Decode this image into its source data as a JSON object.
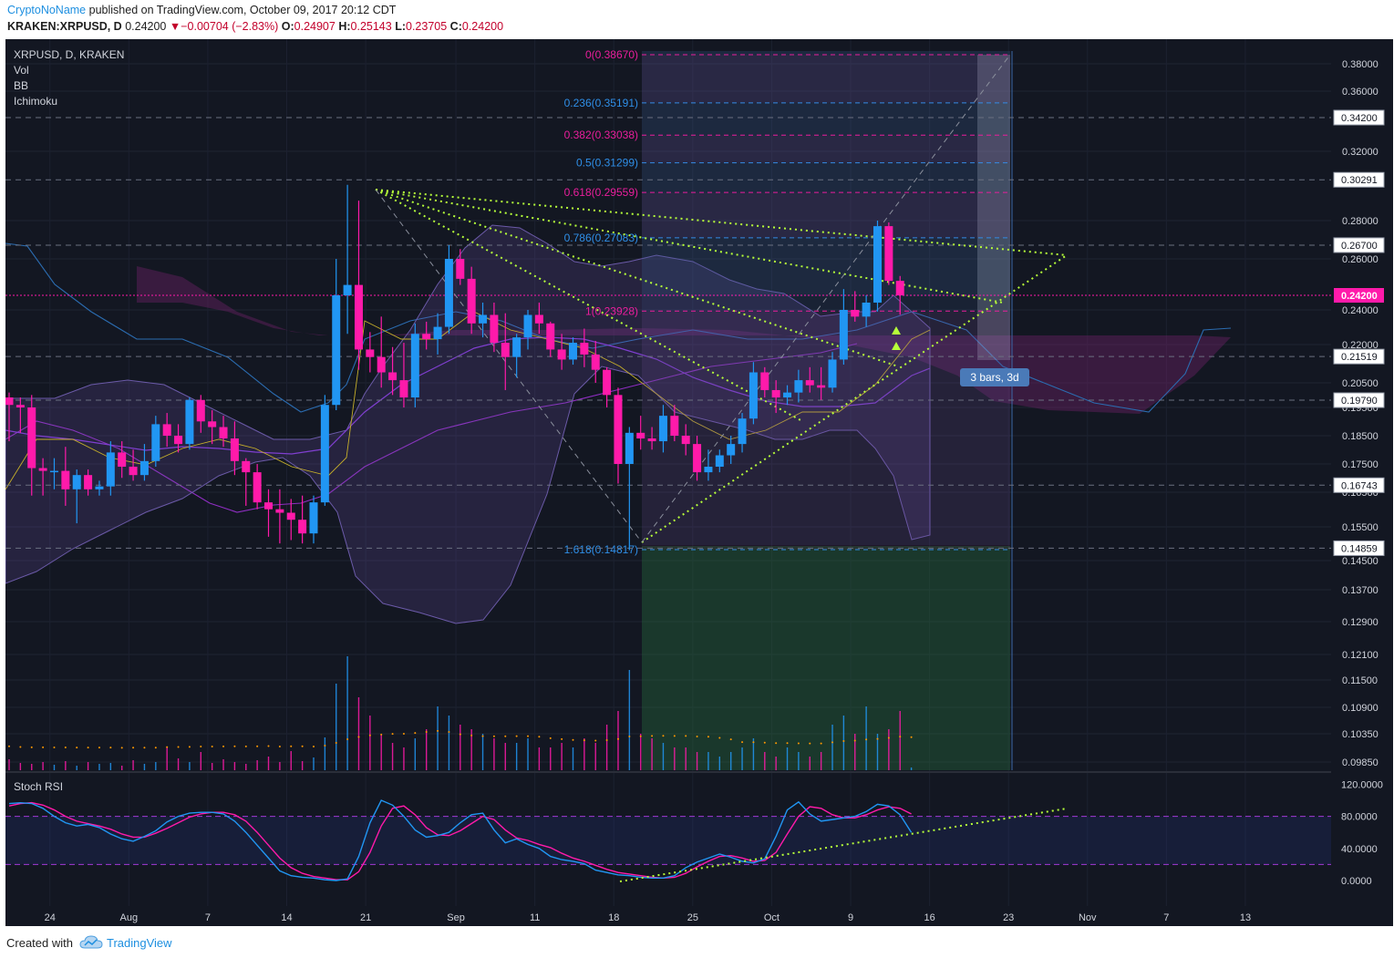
{
  "header": {
    "author": "CryptoNoName",
    "published_text": "published on TradingView.com, October 09, 2017 20:12 CDT",
    "symbol_line": "KRAKEN:XRPUSD, D",
    "last": "0.24200",
    "change": "−0.00704 (−2.83%)",
    "o_label": "O:",
    "o": "0.24907",
    "h_label": "H:",
    "h": "0.25143",
    "l_label": "L:",
    "l": "0.23705",
    "c_label": "C:",
    "c": "0.24200"
  },
  "legend": {
    "symbol": "XRPUSD, D, KRAKEN",
    "indicators": [
      "Vol",
      "BB",
      "Ichimoku"
    ]
  },
  "footer": {
    "created_with": "Created with",
    "brand": "TradingView"
  },
  "colors": {
    "background": "#131722",
    "up": "#2196f3",
    "down": "#ff1aaa",
    "fib_pink": "#e91e9c",
    "fib_blue": "#2f8fe8",
    "trendline": "#b6ff3a",
    "stoch_k": "#2196f3",
    "stoch_d": "#ff1aaa",
    "volume_ma": "#ff9800"
  },
  "chart_data": {
    "type": "candlestick",
    "instrument": "XRPUSD",
    "timeframe": "D",
    "exchange": "KRAKEN",
    "price_axis": {
      "ticks": [
        "0.38000",
        "0.36000",
        "0.32000",
        "0.28000",
        "0.26000",
        "0.24000",
        "0.22000",
        "0.20500",
        "0.19500",
        "0.18500",
        "0.17500",
        "0.16500",
        "0.15500",
        "0.14500",
        "0.13700",
        "0.12900",
        "0.12100",
        "0.11500",
        "0.10900",
        "0.10350",
        "0.09850"
      ],
      "labels": [
        "0.34200",
        "0.30291",
        "0.26700",
        "0.24200",
        "0.21519",
        "0.19790",
        "0.16743",
        "0.14859"
      ],
      "current": "0.24200"
    },
    "time_axis": [
      "24",
      "Aug",
      "7",
      "14",
      "21",
      "Sep",
      "11",
      "18",
      "25",
      "Oct",
      "9",
      "16",
      "23",
      "Nov",
      "7",
      "13"
    ],
    "candles": [
      {
        "o": 0.199,
        "h": 0.201,
        "l": 0.183,
        "c": 0.196
      },
      {
        "o": 0.196,
        "h": 0.199,
        "l": 0.186,
        "c": 0.195
      },
      {
        "o": 0.195,
        "h": 0.2,
        "l": 0.164,
        "c": 0.1735
      },
      {
        "o": 0.1735,
        "h": 0.177,
        "l": 0.164,
        "c": 0.1725
      },
      {
        "o": 0.1725,
        "h": 0.177,
        "l": 0.166,
        "c": 0.1725
      },
      {
        "o": 0.1725,
        "h": 0.181,
        "l": 0.161,
        "c": 0.166
      },
      {
        "o": 0.166,
        "h": 0.173,
        "l": 0.156,
        "c": 0.171
      },
      {
        "o": 0.171,
        "h": 0.173,
        "l": 0.164,
        "c": 0.166
      },
      {
        "o": 0.166,
        "h": 0.169,
        "l": 0.164,
        "c": 0.167
      },
      {
        "o": 0.167,
        "h": 0.183,
        "l": 0.164,
        "c": 0.179
      },
      {
        "o": 0.179,
        "h": 0.183,
        "l": 0.17,
        "c": 0.174
      },
      {
        "o": 0.174,
        "h": 0.18,
        "l": 0.169,
        "c": 0.171
      },
      {
        "o": 0.171,
        "h": 0.182,
        "l": 0.169,
        "c": 0.176
      },
      {
        "o": 0.176,
        "h": 0.192,
        "l": 0.174,
        "c": 0.189
      },
      {
        "o": 0.189,
        "h": 0.193,
        "l": 0.181,
        "c": 0.185
      },
      {
        "o": 0.185,
        "h": 0.189,
        "l": 0.179,
        "c": 0.182
      },
      {
        "o": 0.182,
        "h": 0.199,
        "l": 0.18,
        "c": 0.198
      },
      {
        "o": 0.198,
        "h": 0.2,
        "l": 0.186,
        "c": 0.19
      },
      {
        "o": 0.19,
        "h": 0.194,
        "l": 0.182,
        "c": 0.188
      },
      {
        "o": 0.188,
        "h": 0.192,
        "l": 0.181,
        "c": 0.184
      },
      {
        "o": 0.184,
        "h": 0.19,
        "l": 0.171,
        "c": 0.176
      },
      {
        "o": 0.176,
        "h": 0.177,
        "l": 0.161,
        "c": 0.172
      },
      {
        "o": 0.172,
        "h": 0.175,
        "l": 0.16,
        "c": 0.162
      },
      {
        "o": 0.162,
        "h": 0.166,
        "l": 0.152,
        "c": 0.16
      },
      {
        "o": 0.16,
        "h": 0.166,
        "l": 0.15,
        "c": 0.159
      },
      {
        "o": 0.159,
        "h": 0.163,
        "l": 0.151,
        "c": 0.157
      },
      {
        "o": 0.157,
        "h": 0.164,
        "l": 0.15,
        "c": 0.153
      },
      {
        "o": 0.153,
        "h": 0.164,
        "l": 0.15,
        "c": 0.162
      },
      {
        "o": 0.162,
        "h": 0.2,
        "l": 0.161,
        "c": 0.196
      },
      {
        "o": 0.196,
        "h": 0.26,
        "l": 0.194,
        "c": 0.242
      },
      {
        "o": 0.242,
        "h": 0.3,
        "l": 0.226,
        "c": 0.247
      },
      {
        "o": 0.247,
        "h": 0.291,
        "l": 0.21,
        "c": 0.218
      },
      {
        "o": 0.218,
        "h": 0.227,
        "l": 0.209,
        "c": 0.215
      },
      {
        "o": 0.215,
        "h": 0.236,
        "l": 0.203,
        "c": 0.209
      },
      {
        "o": 0.209,
        "h": 0.219,
        "l": 0.2,
        "c": 0.206
      },
      {
        "o": 0.206,
        "h": 0.221,
        "l": 0.195,
        "c": 0.199
      },
      {
        "o": 0.199,
        "h": 0.232,
        "l": 0.195,
        "c": 0.226
      },
      {
        "o": 0.226,
        "h": 0.233,
        "l": 0.218,
        "c": 0.223
      },
      {
        "o": 0.223,
        "h": 0.238,
        "l": 0.216,
        "c": 0.23
      },
      {
        "o": 0.23,
        "h": 0.267,
        "l": 0.226,
        "c": 0.26
      },
      {
        "o": 0.26,
        "h": 0.265,
        "l": 0.247,
        "c": 0.25
      },
      {
        "o": 0.25,
        "h": 0.256,
        "l": 0.226,
        "c": 0.232
      },
      {
        "o": 0.232,
        "h": 0.241,
        "l": 0.224,
        "c": 0.237
      },
      {
        "o": 0.237,
        "h": 0.241,
        "l": 0.217,
        "c": 0.221
      },
      {
        "o": 0.221,
        "h": 0.238,
        "l": 0.202,
        "c": 0.215
      },
      {
        "o": 0.215,
        "h": 0.226,
        "l": 0.207,
        "c": 0.224
      },
      {
        "o": 0.224,
        "h": 0.24,
        "l": 0.218,
        "c": 0.237
      },
      {
        "o": 0.237,
        "h": 0.241,
        "l": 0.226,
        "c": 0.232
      },
      {
        "o": 0.232,
        "h": 0.233,
        "l": 0.215,
        "c": 0.218
      },
      {
        "o": 0.218,
        "h": 0.226,
        "l": 0.21,
        "c": 0.214
      },
      {
        "o": 0.214,
        "h": 0.224,
        "l": 0.212,
        "c": 0.221
      },
      {
        "o": 0.221,
        "h": 0.229,
        "l": 0.211,
        "c": 0.216
      },
      {
        "o": 0.216,
        "h": 0.222,
        "l": 0.205,
        "c": 0.21
      },
      {
        "o": 0.21,
        "h": 0.211,
        "l": 0.195,
        "c": 0.2
      },
      {
        "o": 0.2,
        "h": 0.203,
        "l": 0.168,
        "c": 0.175
      },
      {
        "o": 0.175,
        "h": 0.188,
        "l": 0.148,
        "c": 0.186
      },
      {
        "o": 0.186,
        "h": 0.192,
        "l": 0.18,
        "c": 0.184
      },
      {
        "o": 0.184,
        "h": 0.188,
        "l": 0.18,
        "c": 0.183
      },
      {
        "o": 0.183,
        "h": 0.196,
        "l": 0.179,
        "c": 0.192
      },
      {
        "o": 0.192,
        "h": 0.196,
        "l": 0.183,
        "c": 0.185
      },
      {
        "o": 0.185,
        "h": 0.189,
        "l": 0.178,
        "c": 0.182
      },
      {
        "o": 0.182,
        "h": 0.185,
        "l": 0.169,
        "c": 0.172
      },
      {
        "o": 0.172,
        "h": 0.18,
        "l": 0.169,
        "c": 0.174
      },
      {
        "o": 0.174,
        "h": 0.18,
        "l": 0.172,
        "c": 0.178
      },
      {
        "o": 0.178,
        "h": 0.185,
        "l": 0.175,
        "c": 0.182
      },
      {
        "o": 0.182,
        "h": 0.193,
        "l": 0.179,
        "c": 0.191
      },
      {
        "o": 0.191,
        "h": 0.213,
        "l": 0.189,
        "c": 0.209
      },
      {
        "o": 0.209,
        "h": 0.211,
        "l": 0.199,
        "c": 0.202
      },
      {
        "o": 0.202,
        "h": 0.206,
        "l": 0.193,
        "c": 0.199
      },
      {
        "o": 0.199,
        "h": 0.204,
        "l": 0.196,
        "c": 0.201
      },
      {
        "o": 0.201,
        "h": 0.21,
        "l": 0.197,
        "c": 0.206
      },
      {
        "o": 0.206,
        "h": 0.211,
        "l": 0.201,
        "c": 0.204
      },
      {
        "o": 0.204,
        "h": 0.211,
        "l": 0.198,
        "c": 0.203
      },
      {
        "o": 0.203,
        "h": 0.217,
        "l": 0.201,
        "c": 0.214
      },
      {
        "o": 0.214,
        "h": 0.245,
        "l": 0.212,
        "c": 0.24
      },
      {
        "o": 0.24,
        "h": 0.244,
        "l": 0.233,
        "c": 0.236
      },
      {
        "o": 0.236,
        "h": 0.242,
        "l": 0.23,
        "c": 0.241
      },
      {
        "o": 0.241,
        "h": 0.28,
        "l": 0.239,
        "c": 0.277
      },
      {
        "o": 0.277,
        "h": 0.279,
        "l": 0.247,
        "c": 0.249
      },
      {
        "o": 0.249,
        "h": 0.2514,
        "l": 0.2371,
        "c": 0.242
      }
    ],
    "fibonacci": [
      {
        "level": "0",
        "price": "0.38670",
        "label": "0(0.38670)",
        "color": "pink"
      },
      {
        "level": "0.236",
        "price": "0.35191",
        "label": "0.236(0.35191)",
        "color": "blue"
      },
      {
        "level": "0.382",
        "price": "0.33038",
        "label": "0.382(0.33038)",
        "color": "pink"
      },
      {
        "level": "0.5",
        "price": "0.31299",
        "label": "0.5(0.31299)",
        "color": "blue"
      },
      {
        "level": "0.618",
        "price": "0.29559",
        "label": "0.618(0.29559)",
        "color": "pink"
      },
      {
        "level": "0.786",
        "price": "0.27083",
        "label": "0.786(0.27083)",
        "color": "blue"
      },
      {
        "level": "1",
        "price": "0.23928",
        "label": "1(0.23928)",
        "color": "pink"
      },
      {
        "level": "1.618",
        "price": "0.14817",
        "label": "1.618(0.14817)",
        "color": "blue"
      }
    ],
    "projection_label": "3 bars, 3d",
    "stoch_rsi": {
      "title": "Stoch RSI",
      "axis": [
        "120.0000",
        "80.0000",
        "40.0000",
        "0.0000"
      ],
      "bands": [
        80,
        20
      ],
      "k": [
        96,
        97,
        96,
        90,
        80,
        72,
        68,
        70,
        66,
        58,
        52,
        49,
        55,
        62,
        73,
        80,
        84,
        85,
        85,
        83,
        74,
        60,
        44,
        28,
        12,
        6,
        4,
        3,
        1,
        0,
        2,
        30,
        72,
        100,
        94,
        80,
        63,
        54,
        56,
        60,
        72,
        82,
        84,
        63,
        47,
        52,
        45,
        40,
        30,
        26,
        24,
        21,
        13,
        10,
        7,
        6,
        4,
        3,
        3,
        6,
        16,
        23,
        28,
        33,
        29,
        24,
        22,
        27,
        55,
        88,
        98,
        83,
        74,
        76,
        78,
        80,
        86,
        95,
        93,
        82,
        60
      ],
      "d": [
        93,
        96,
        97,
        94,
        88,
        80,
        74,
        71,
        68,
        64,
        58,
        54,
        54,
        59,
        65,
        72,
        79,
        83,
        85,
        85,
        82,
        74,
        60,
        44,
        28,
        16,
        9,
        5,
        3,
        1,
        1,
        11,
        35,
        68,
        90,
        93,
        82,
        66,
        57,
        56,
        62,
        71,
        80,
        76,
        63,
        53,
        50,
        45,
        41,
        34,
        28,
        24,
        19,
        14,
        10,
        8,
        6,
        4,
        3,
        4,
        9,
        17,
        24,
        30,
        31,
        28,
        24,
        25,
        35,
        58,
        80,
        92,
        90,
        82,
        78,
        78,
        82,
        88,
        92,
        90,
        83
      ]
    },
    "volume": [
      12,
      8,
      7,
      9,
      6,
      10,
      5,
      9,
      7,
      8,
      5,
      11,
      7,
      9,
      25,
      13,
      9,
      20,
      8,
      12,
      9,
      7,
      11,
      15,
      9,
      21,
      10,
      14,
      36,
      95,
      125,
      80,
      60,
      40,
      30,
      25,
      35,
      45,
      70,
      60,
      50,
      45,
      40,
      35,
      30,
      30,
      35,
      25,
      25,
      30,
      25,
      35,
      30,
      50,
      65,
      110,
      40,
      35,
      30,
      25,
      25,
      20,
      20,
      15,
      20,
      25,
      35,
      20,
      15,
      25,
      20,
      15,
      20,
      50,
      60,
      40,
      70,
      40,
      45,
      65,
      3
    ]
  }
}
